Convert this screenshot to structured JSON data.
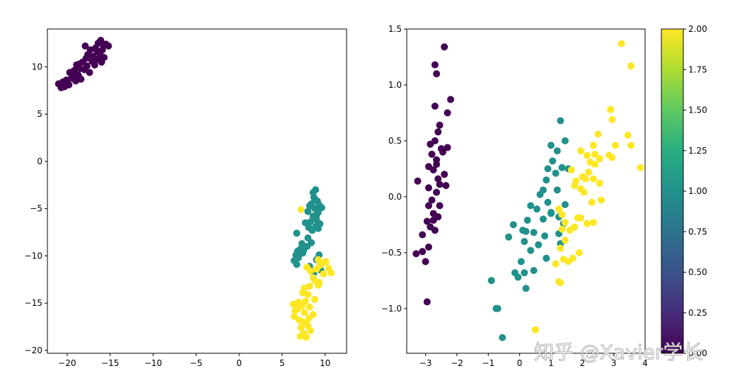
{
  "watermark": "知乎 @Xavier学长",
  "colors": {
    "class0": "#440154",
    "class1": "#21918c",
    "class2": "#fde725"
  },
  "chart_data": [
    {
      "type": "scatter",
      "title": "",
      "xlabel": "",
      "ylabel": "",
      "xlim": [
        -22.3,
        12.5
      ],
      "ylim": [
        -20.3,
        14.0
      ],
      "xticks": [
        -20,
        -15,
        -10,
        -5,
        0,
        5,
        10
      ],
      "yticks": [
        -20,
        -15,
        -10,
        -5,
        0,
        5,
        10
      ],
      "grid": false,
      "series": [
        {
          "class": 0,
          "color": "#440154",
          "points": [
            [
              -21.0,
              8.2
            ],
            [
              -20.7,
              7.8
            ],
            [
              -20.5,
              8.4
            ],
            [
              -20.3,
              7.9
            ],
            [
              -20.1,
              8.6
            ],
            [
              -19.8,
              8.1
            ],
            [
              -19.7,
              9.4
            ],
            [
              -19.5,
              8.8
            ],
            [
              -19.2,
              9.6
            ],
            [
              -19.0,
              8.5
            ],
            [
              -18.9,
              10.2
            ],
            [
              -18.7,
              9.1
            ],
            [
              -18.5,
              9.8
            ],
            [
              -18.4,
              8.7
            ],
            [
              -18.2,
              10.5
            ],
            [
              -18.0,
              9.7
            ],
            [
              -17.9,
              12.2
            ],
            [
              -17.7,
              10.1
            ],
            [
              -17.6,
              11.3
            ],
            [
              -17.4,
              9.4
            ],
            [
              -17.3,
              11.8
            ],
            [
              -17.1,
              10.6
            ],
            [
              -17.0,
              11.1
            ],
            [
              -16.8,
              10.2
            ],
            [
              -16.7,
              12.0
            ],
            [
              -16.5,
              11.6
            ],
            [
              -16.4,
              12.5
            ],
            [
              -16.3,
              10.9
            ],
            [
              -16.2,
              11.4
            ],
            [
              -16.1,
              12.8
            ],
            [
              -16.0,
              10.5
            ],
            [
              -15.9,
              11.8
            ],
            [
              -15.8,
              12.3
            ],
            [
              -15.7,
              11.0
            ],
            [
              -15.5,
              12.4
            ],
            [
              -15.2,
              12.2
            ],
            [
              -16.6,
              10.8
            ],
            [
              -17.8,
              10.9
            ],
            [
              -18.6,
              10.3
            ],
            [
              -19.4,
              9.0
            ]
          ]
        },
        {
          "class": 1,
          "color": "#21918c",
          "points": [
            [
              8.6,
              -3.3
            ],
            [
              8.9,
              -3.0
            ],
            [
              8.7,
              -3.8
            ],
            [
              9.1,
              -4.2
            ],
            [
              8.4,
              -4.5
            ],
            [
              8.2,
              -4.7
            ],
            [
              9.3,
              -4.6
            ],
            [
              9.6,
              -4.9
            ],
            [
              8.8,
              -5.0
            ],
            [
              9.2,
              -5.4
            ],
            [
              8.0,
              -5.3
            ],
            [
              8.6,
              -5.8
            ],
            [
              9.0,
              -6.2
            ],
            [
              8.3,
              -6.4
            ],
            [
              7.7,
              -6.5
            ],
            [
              9.4,
              -6.6
            ],
            [
              8.9,
              -6.9
            ],
            [
              9.2,
              -7.1
            ],
            [
              8.5,
              -7.3
            ],
            [
              6.7,
              -7.6
            ],
            [
              8.0,
              -8.1
            ],
            [
              8.4,
              -8.6
            ],
            [
              7.3,
              -8.7
            ],
            [
              7.9,
              -9.0
            ],
            [
              7.1,
              -9.3
            ],
            [
              6.8,
              -9.5
            ],
            [
              7.4,
              -9.7
            ],
            [
              6.6,
              -9.9
            ],
            [
              6.9,
              -10.2
            ],
            [
              9.3,
              -9.9
            ],
            [
              6.4,
              -10.5
            ],
            [
              6.7,
              -10.9
            ],
            [
              9.0,
              -10.4
            ],
            [
              8.7,
              -11.8
            ],
            [
              9.5,
              -11.5
            ],
            [
              8.2,
              -11.1
            ],
            [
              7.5,
              -9.4
            ],
            [
              8.1,
              -7.0
            ],
            [
              8.8,
              -4.0
            ],
            [
              9.0,
              -5.7
            ]
          ]
        },
        {
          "class": 2,
          "color": "#fde725",
          "points": [
            [
              7.2,
              -5.1
            ],
            [
              9.2,
              -10.4
            ],
            [
              9.6,
              -10.8
            ],
            [
              10.1,
              -10.6
            ],
            [
              10.4,
              -11.3
            ],
            [
              10.7,
              -11.8
            ],
            [
              9.8,
              -11.9
            ],
            [
              9.0,
              -11.4
            ],
            [
              8.3,
              -11.6
            ],
            [
              7.9,
              -11.2
            ],
            [
              8.6,
              -12.3
            ],
            [
              9.3,
              -12.8
            ],
            [
              7.6,
              -13.4
            ],
            [
              8.2,
              -13.2
            ],
            [
              9.2,
              -13.1
            ],
            [
              8.0,
              -14.1
            ],
            [
              7.4,
              -13.9
            ],
            [
              8.8,
              -14.6
            ],
            [
              7.7,
              -14.8
            ],
            [
              6.3,
              -15.1
            ],
            [
              7.3,
              -15.3
            ],
            [
              8.2,
              -15.4
            ],
            [
              6.5,
              -15.8
            ],
            [
              7.6,
              -16.0
            ],
            [
              8.6,
              -16.2
            ],
            [
              6.4,
              -16.4
            ],
            [
              7.0,
              -16.8
            ],
            [
              7.8,
              -17.1
            ],
            [
              8.0,
              -17.4
            ],
            [
              7.2,
              -17.6
            ],
            [
              8.3,
              -17.9
            ],
            [
              7.5,
              -18.2
            ],
            [
              7.1,
              -18.5
            ],
            [
              7.8,
              -18.6
            ],
            [
              6.8,
              -15.6
            ],
            [
              8.8,
              -12.6
            ],
            [
              9.4,
              -11.0
            ],
            [
              6.9,
              -14.9
            ],
            [
              7.4,
              -17.0
            ],
            [
              8.1,
              -16.6
            ]
          ]
        }
      ]
    },
    {
      "type": "scatter",
      "title": "",
      "xlabel": "",
      "ylabel": "",
      "xlim": [
        -3.6,
        4.0
      ],
      "ylim": [
        -1.4,
        1.5
      ],
      "xticks": [
        -3,
        -2,
        -1,
        0,
        1,
        2,
        3,
        4
      ],
      "yticks": [
        -1.0,
        -0.5,
        0.0,
        0.5,
        1.0,
        1.5
      ],
      "grid": false,
      "colorbar": {
        "min": 0.0,
        "max": 2.0,
        "ticks": [
          "0.00",
          "0.25",
          "0.50",
          "0.75",
          "1.00",
          "1.25",
          "1.50",
          "1.75",
          "2.00"
        ],
        "colormap": "viridis"
      },
      "series": [
        {
          "class": 0,
          "color": "#440154",
          "points": [
            [
              -2.4,
              1.34
            ],
            [
              -2.7,
              1.18
            ],
            [
              -2.65,
              1.1
            ],
            [
              -2.2,
              0.87
            ],
            [
              -2.7,
              0.81
            ],
            [
              -2.3,
              0.75
            ],
            [
              -2.55,
              0.64
            ],
            [
              -2.6,
              0.58
            ],
            [
              -2.7,
              0.5
            ],
            [
              -2.85,
              0.47
            ],
            [
              -2.5,
              0.43
            ],
            [
              -2.3,
              0.44
            ],
            [
              -2.45,
              0.4
            ],
            [
              -2.8,
              0.38
            ],
            [
              -2.65,
              0.33
            ],
            [
              -2.9,
              0.27
            ],
            [
              -2.75,
              0.24
            ],
            [
              -2.6,
              0.16
            ],
            [
              -2.4,
              0.2
            ],
            [
              -3.25,
              0.14
            ],
            [
              -2.9,
              0.08
            ],
            [
              -2.55,
              0.11
            ],
            [
              -2.35,
              0.1
            ],
            [
              -2.65,
              0.04
            ],
            [
              -2.8,
              -0.03
            ],
            [
              -2.55,
              -0.08
            ],
            [
              -2.9,
              -0.08
            ],
            [
              -2.75,
              -0.15
            ],
            [
              -2.6,
              -0.18
            ],
            [
              -2.95,
              -0.22
            ],
            [
              -2.85,
              -0.27
            ],
            [
              -2.7,
              -0.3
            ],
            [
              -3.1,
              -0.34
            ],
            [
              -2.9,
              -0.45
            ],
            [
              -3.3,
              -0.51
            ],
            [
              -3.1,
              -0.49
            ],
            [
              -3.0,
              -0.58
            ],
            [
              -2.95,
              -0.94
            ],
            [
              -2.75,
              -0.21
            ],
            [
              -2.65,
              0.29
            ]
          ]
        },
        {
          "class": 1,
          "color": "#21918c",
          "points": [
            [
              1.3,
              0.68
            ],
            [
              1.45,
              0.5
            ],
            [
              1.0,
              0.46
            ],
            [
              1.2,
              0.41
            ],
            [
              1.05,
              0.32
            ],
            [
              0.9,
              0.25
            ],
            [
              1.35,
              0.26
            ],
            [
              1.55,
              0.25
            ],
            [
              1.15,
              0.21
            ],
            [
              0.85,
              0.15
            ],
            [
              0.75,
              0.06
            ],
            [
              0.65,
              0.02
            ],
            [
              1.2,
              0.06
            ],
            [
              0.35,
              -0.08
            ],
            [
              1.45,
              -0.07
            ],
            [
              0.55,
              -0.11
            ],
            [
              1.0,
              -0.14
            ],
            [
              1.25,
              -0.18
            ],
            [
              0.75,
              -0.2
            ],
            [
              1.4,
              -0.24
            ],
            [
              0.25,
              -0.21
            ],
            [
              -0.2,
              -0.25
            ],
            [
              0.2,
              -0.31
            ],
            [
              0.1,
              -0.3
            ],
            [
              0.45,
              -0.32
            ],
            [
              0.8,
              -0.35
            ],
            [
              1.25,
              -0.33
            ],
            [
              -0.35,
              -0.36
            ],
            [
              0.15,
              -0.4
            ],
            [
              0.6,
              -0.43
            ],
            [
              1.3,
              -0.42
            ],
            [
              0.35,
              -0.48
            ],
            [
              0.85,
              -0.55
            ],
            [
              0.05,
              -0.58
            ],
            [
              -0.15,
              -0.68
            ],
            [
              0.15,
              -0.68
            ],
            [
              0.45,
              -0.66
            ],
            [
              -0.05,
              -0.72
            ],
            [
              -0.9,
              -0.75
            ],
            [
              0.2,
              -0.82
            ],
            [
              -0.75,
              -1.0
            ],
            [
              -0.7,
              -1.0
            ],
            [
              -0.55,
              -1.26
            ],
            [
              1.0,
              -0.15
            ],
            [
              0.9,
              -0.05
            ]
          ]
        },
        {
          "class": 2,
          "color": "#fde725",
          "points": [
            [
              3.25,
              1.37
            ],
            [
              3.55,
              1.17
            ],
            [
              2.9,
              0.78
            ],
            [
              2.95,
              0.69
            ],
            [
              2.5,
              0.56
            ],
            [
              3.45,
              0.55
            ],
            [
              3.05,
              0.46
            ],
            [
              2.35,
              0.46
            ],
            [
              3.55,
              0.46
            ],
            [
              1.95,
              0.41
            ],
            [
              2.15,
              0.37
            ],
            [
              2.4,
              0.38
            ],
            [
              2.85,
              0.37
            ],
            [
              2.95,
              0.35
            ],
            [
              2.55,
              0.34
            ],
            [
              2.25,
              0.31
            ],
            [
              2.4,
              0.29
            ],
            [
              3.85,
              0.26
            ],
            [
              1.65,
              0.24
            ],
            [
              2.2,
              0.22
            ],
            [
              2.0,
              0.18
            ],
            [
              2.35,
              0.16
            ],
            [
              2.55,
              0.12
            ],
            [
              2.1,
              0.16
            ],
            [
              1.8,
              0.14
            ],
            [
              1.75,
              0.1
            ],
            [
              1.95,
              0.07
            ],
            [
              2.05,
              0.04
            ],
            [
              2.6,
              -0.03
            ],
            [
              2.3,
              -0.05
            ],
            [
              1.25,
              -0.11
            ],
            [
              1.35,
              -0.16
            ],
            [
              1.85,
              -0.19
            ],
            [
              1.45,
              -0.23
            ],
            [
              1.75,
              -0.27
            ],
            [
              1.6,
              -0.3
            ],
            [
              1.95,
              -0.19
            ],
            [
              1.35,
              -0.29
            ],
            [
              1.45,
              -0.39
            ],
            [
              1.3,
              -0.46
            ],
            [
              2.15,
              -0.24
            ],
            [
              1.9,
              -0.5
            ],
            [
              1.7,
              -0.55
            ],
            [
              1.55,
              -0.58
            ],
            [
              1.4,
              -0.56
            ],
            [
              1.15,
              -0.6
            ],
            [
              1.3,
              -0.77
            ],
            [
              1.25,
              -0.76
            ],
            [
              0.5,
              -1.19
            ],
            [
              2.35,
              -0.23
            ]
          ]
        }
      ]
    }
  ]
}
